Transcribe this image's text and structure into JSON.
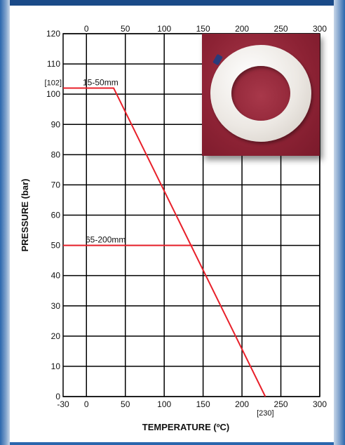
{
  "chart_data": {
    "type": "line",
    "xlabel": "TEMPERATURE (ºC)",
    "ylabel": "PRESSURE (bar)",
    "xlim": [
      -30,
      300
    ],
    "ylim": [
      0,
      120
    ],
    "grid": true,
    "x_ticks_bottom": [
      "-30",
      "0",
      "50",
      "100",
      "150",
      "200",
      "250",
      "300"
    ],
    "x_ticks_top": [
      "0",
      "50",
      "100",
      "150",
      "200",
      "250",
      "300"
    ],
    "y_ticks": [
      "0",
      "10",
      "20",
      "30",
      "40",
      "50",
      "60",
      "70",
      "80",
      "90",
      "100",
      "110",
      "120"
    ],
    "annotations": {
      "y_marker": "[102]",
      "x_marker": "[230]"
    },
    "series": [
      {
        "name": "15-50mm",
        "x": [
          -30,
          35,
          230
        ],
        "y": [
          102,
          102,
          0
        ]
      },
      {
        "name": "65-200mm",
        "x": [
          -30,
          137
        ],
        "y": [
          50,
          50
        ]
      }
    ],
    "color": "#e8202a"
  },
  "photo": {
    "icon": "seal-ring-photo"
  }
}
